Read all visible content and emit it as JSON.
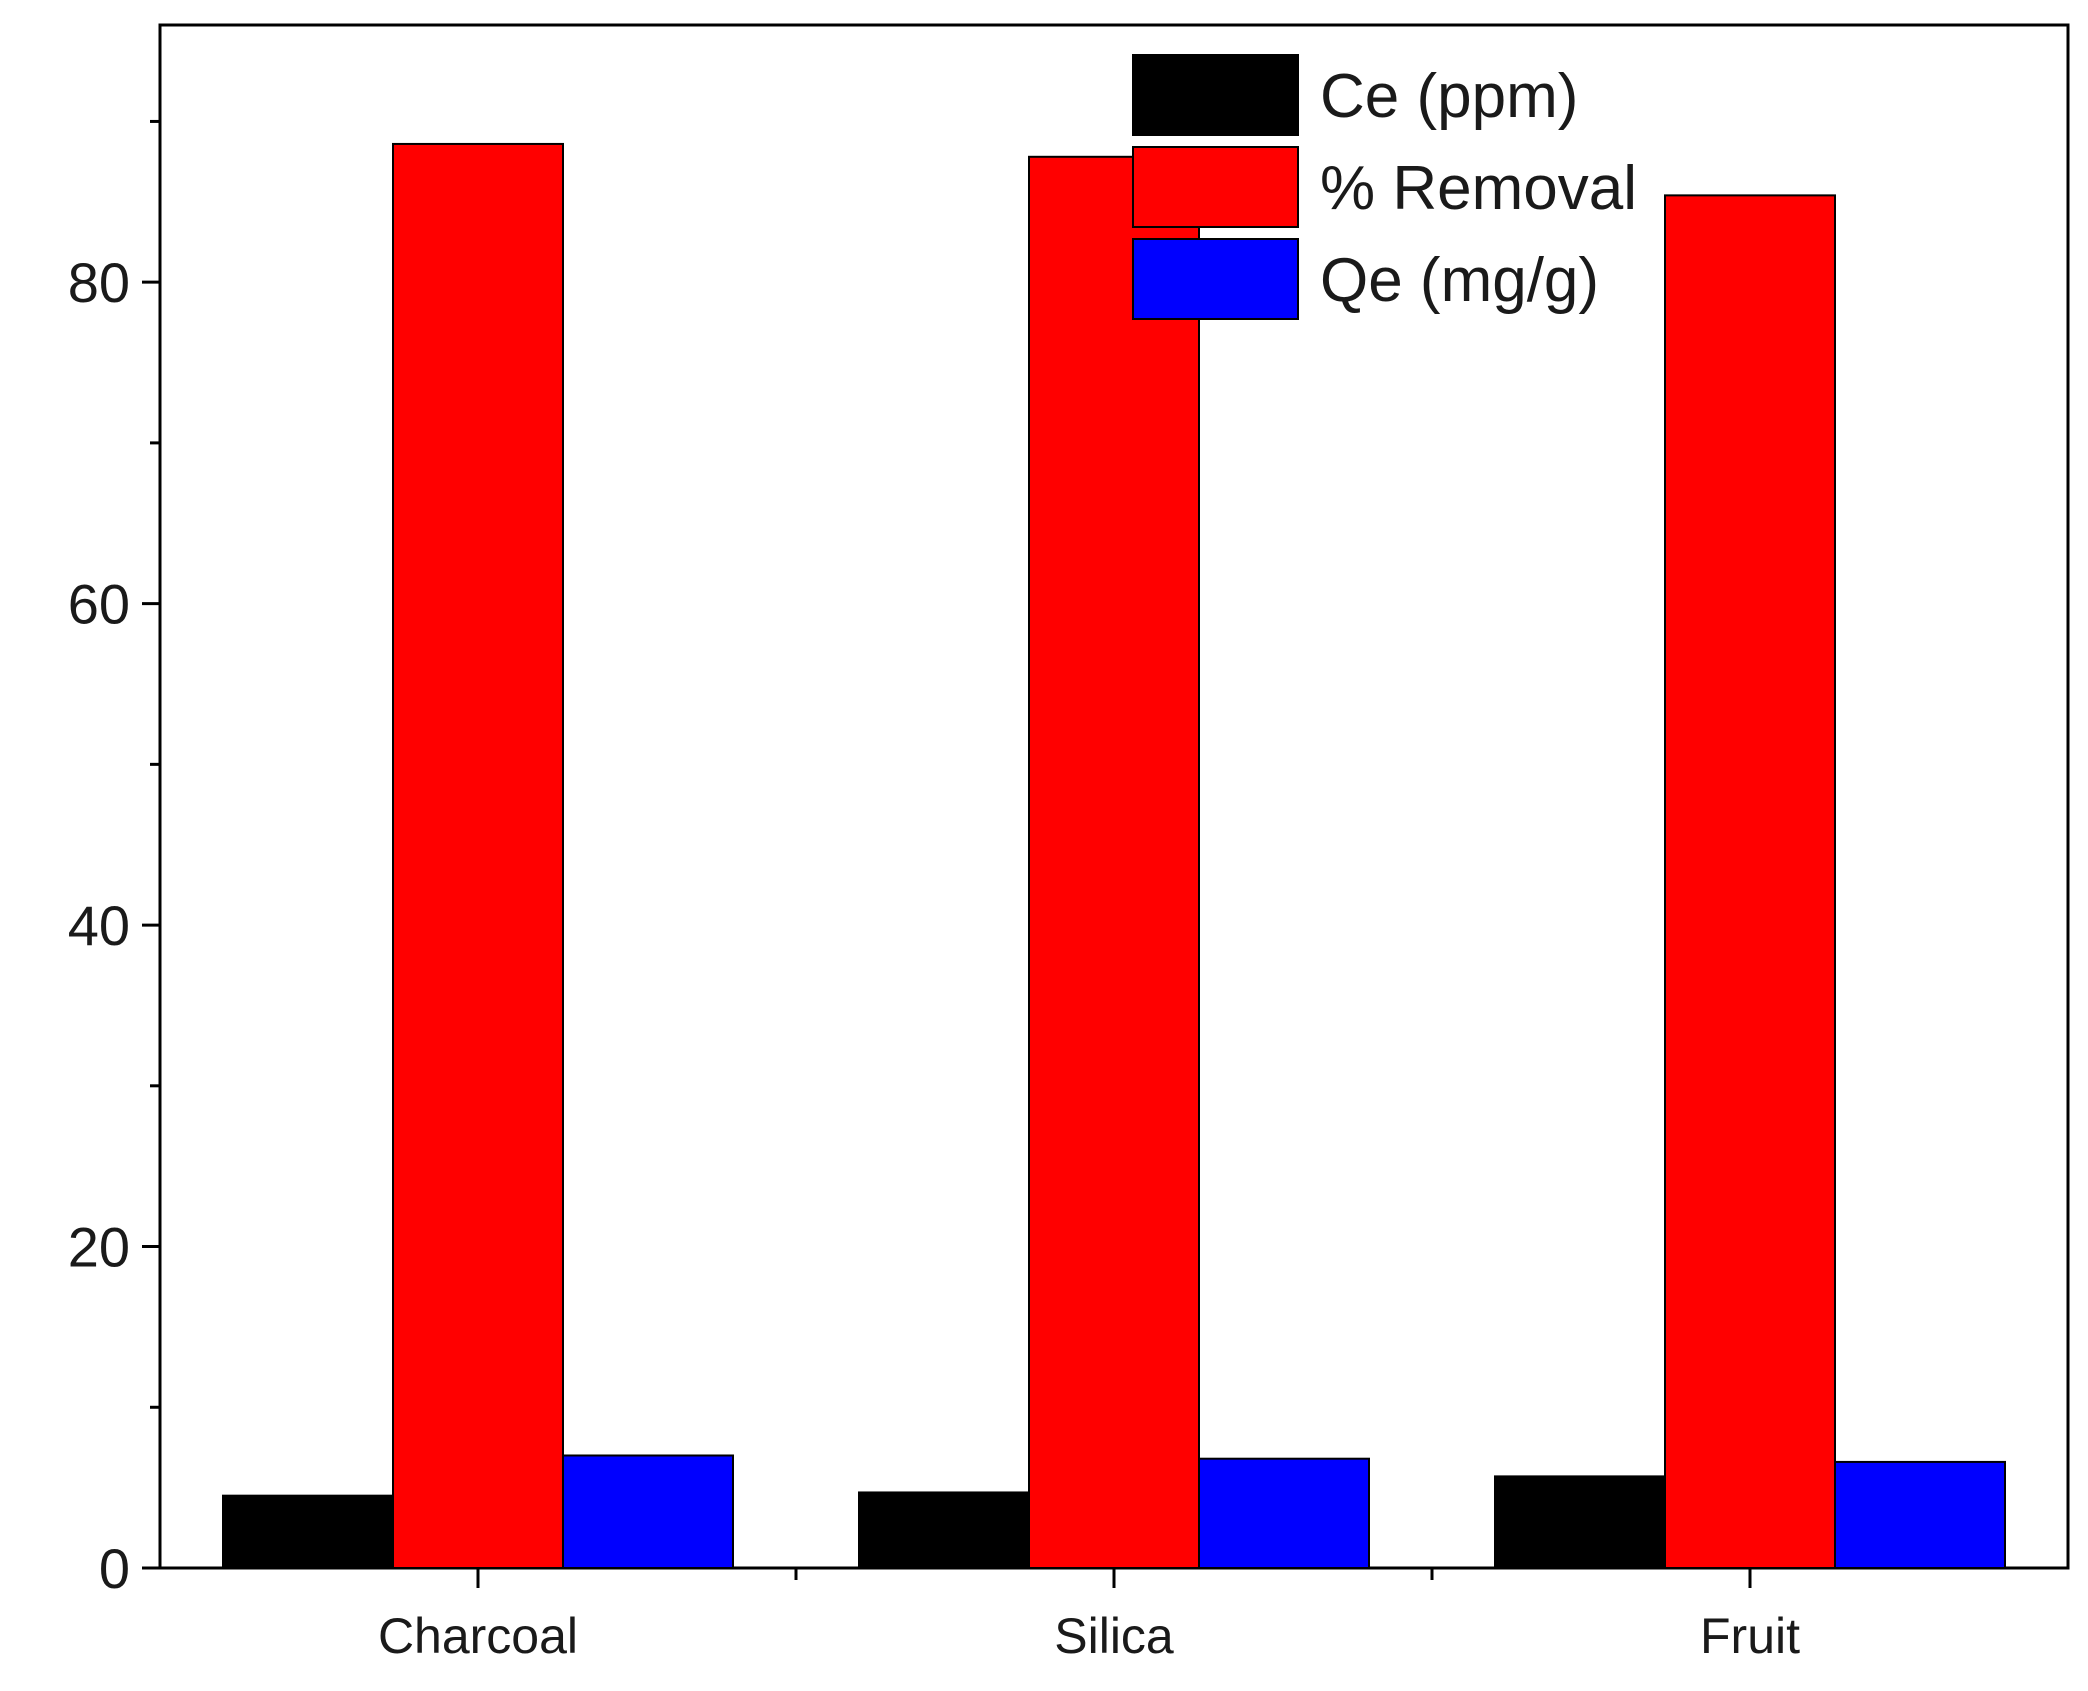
{
  "chart_data": {
    "type": "bar",
    "categories": [
      "Charcoal",
      "Silica",
      "Fruit"
    ],
    "series": [
      {
        "name": "Ce (ppm)",
        "color": "#000000",
        "values": [
          4.5,
          4.7,
          5.7
        ]
      },
      {
        "name": "% Removal",
        "color": "#ff0000",
        "values": [
          88.6,
          87.8,
          85.4
        ]
      },
      {
        "name": "Qe (mg/g)",
        "color": "#0000ff",
        "values": [
          7.0,
          6.8,
          6.6
        ]
      }
    ],
    "title": "",
    "xlabel": "",
    "ylabel": "",
    "ylim": [
      0,
      96
    ],
    "yticks": [
      0,
      20,
      40,
      60,
      80
    ],
    "y_minor_step": 10,
    "grid": false,
    "legend": "top-center"
  }
}
